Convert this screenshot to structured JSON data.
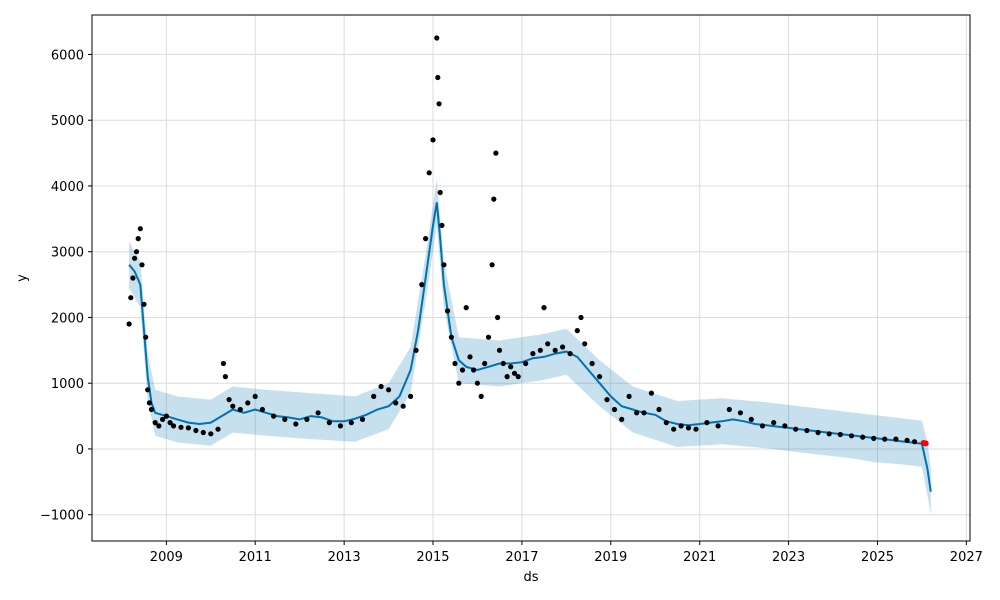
{
  "chart_data": {
    "type": "line",
    "title": "",
    "xlabel": "ds",
    "ylabel": "y",
    "xlim": [
      "2007-05-01",
      "2027-01-31"
    ],
    "ylim": [
      -1400,
      6600
    ],
    "grid": true,
    "x_ticks": [
      "2009",
      "2011",
      "2013",
      "2015",
      "2017",
      "2019",
      "2021",
      "2023",
      "2025",
      "2027"
    ],
    "y_ticks": [
      -1000,
      0,
      1000,
      2000,
      3000,
      4000,
      5000,
      6000
    ],
    "colors": {
      "observed": "#000000",
      "forecast_line": "#0072B2",
      "uncertainty_band": "#0072B2",
      "highlight": "#ff0000"
    },
    "series": [
      {
        "role": "observed",
        "style": "points",
        "points": [
          [
            "2008-03-01",
            1900
          ],
          [
            "2008-03-15",
            2300
          ],
          [
            "2008-04-01",
            2600
          ],
          [
            "2008-04-15",
            2900
          ],
          [
            "2008-05-01",
            3000
          ],
          [
            "2008-05-15",
            3200
          ],
          [
            "2008-06-01",
            3350
          ],
          [
            "2008-06-15",
            2800
          ],
          [
            "2008-07-01",
            2200
          ],
          [
            "2008-07-15",
            1700
          ],
          [
            "2008-08-01",
            900
          ],
          [
            "2008-08-15",
            700
          ],
          [
            "2008-09-01",
            600
          ],
          [
            "2008-10-01",
            400
          ],
          [
            "2008-11-01",
            350
          ],
          [
            "2008-12-01",
            450
          ],
          [
            "2009-01-01",
            500
          ],
          [
            "2009-02-01",
            400
          ],
          [
            "2009-03-01",
            350
          ],
          [
            "2009-05-01",
            330
          ],
          [
            "2009-07-01",
            320
          ],
          [
            "2009-09-01",
            280
          ],
          [
            "2009-11-01",
            250
          ],
          [
            "2010-01-01",
            230
          ],
          [
            "2010-03-01",
            300
          ],
          [
            "2010-04-15",
            1300
          ],
          [
            "2010-05-01",
            1100
          ],
          [
            "2010-06-01",
            750
          ],
          [
            "2010-07-01",
            650
          ],
          [
            "2010-09-01",
            600
          ],
          [
            "2010-11-01",
            700
          ],
          [
            "2011-01-01",
            800
          ],
          [
            "2011-03-01",
            600
          ],
          [
            "2011-06-01",
            500
          ],
          [
            "2011-09-01",
            450
          ],
          [
            "2011-12-01",
            380
          ],
          [
            "2012-03-01",
            450
          ],
          [
            "2012-06-01",
            550
          ],
          [
            "2012-09-01",
            400
          ],
          [
            "2012-12-01",
            350
          ],
          [
            "2013-03-01",
            400
          ],
          [
            "2013-06-01",
            450
          ],
          [
            "2013-09-01",
            800
          ],
          [
            "2013-11-01",
            950
          ],
          [
            "2014-01-01",
            900
          ],
          [
            "2014-03-01",
            700
          ],
          [
            "2014-05-01",
            650
          ],
          [
            "2014-07-01",
            800
          ],
          [
            "2014-08-15",
            1500
          ],
          [
            "2014-10-01",
            2500
          ],
          [
            "2014-11-01",
            3200
          ],
          [
            "2014-12-01",
            4200
          ],
          [
            "2015-01-01",
            4700
          ],
          [
            "2015-02-01",
            6250
          ],
          [
            "2015-02-10",
            5650
          ],
          [
            "2015-02-20",
            5250
          ],
          [
            "2015-03-01",
            3900
          ],
          [
            "2015-03-15",
            3400
          ],
          [
            "2015-04-01",
            2800
          ],
          [
            "2015-05-01",
            2100
          ],
          [
            "2015-06-01",
            1700
          ],
          [
            "2015-07-01",
            1300
          ],
          [
            "2015-08-01",
            1000
          ],
          [
            "2015-09-01",
            1200
          ],
          [
            "2015-10-01",
            2150
          ],
          [
            "2015-11-01",
            1400
          ],
          [
            "2015-12-01",
            1200
          ],
          [
            "2016-01-01",
            1000
          ],
          [
            "2016-02-01",
            800
          ],
          [
            "2016-03-01",
            1300
          ],
          [
            "2016-04-01",
            1700
          ],
          [
            "2016-05-01",
            2800
          ],
          [
            "2016-05-15",
            3800
          ],
          [
            "2016-06-01",
            4500
          ],
          [
            "2016-06-15",
            2000
          ],
          [
            "2016-07-01",
            1500
          ],
          [
            "2016-08-01",
            1300
          ],
          [
            "2016-09-01",
            1100
          ],
          [
            "2016-10-01",
            1250
          ],
          [
            "2016-11-01",
            1150
          ],
          [
            "2016-12-01",
            1100
          ],
          [
            "2017-02-01",
            1300
          ],
          [
            "2017-04-01",
            1450
          ],
          [
            "2017-06-01",
            1500
          ],
          [
            "2017-07-01",
            2150
          ],
          [
            "2017-08-01",
            1600
          ],
          [
            "2017-10-01",
            1500
          ],
          [
            "2017-12-01",
            1550
          ],
          [
            "2018-02-01",
            1450
          ],
          [
            "2018-04-01",
            1800
          ],
          [
            "2018-05-01",
            2000
          ],
          [
            "2018-06-01",
            1600
          ],
          [
            "2018-08-01",
            1300
          ],
          [
            "2018-10-01",
            1100
          ],
          [
            "2018-12-01",
            750
          ],
          [
            "2019-02-01",
            600
          ],
          [
            "2019-04-01",
            450
          ],
          [
            "2019-06-01",
            800
          ],
          [
            "2019-08-01",
            550
          ],
          [
            "2019-10-01",
            550
          ],
          [
            "2019-12-01",
            850
          ],
          [
            "2020-02-01",
            600
          ],
          [
            "2020-04-01",
            400
          ],
          [
            "2020-06-01",
            300
          ],
          [
            "2020-08-01",
            350
          ],
          [
            "2020-10-01",
            320
          ],
          [
            "2020-12-01",
            300
          ],
          [
            "2021-03-01",
            400
          ],
          [
            "2021-06-01",
            350
          ],
          [
            "2021-09-01",
            600
          ],
          [
            "2021-12-01",
            550
          ],
          [
            "2022-03-01",
            450
          ],
          [
            "2022-06-01",
            350
          ],
          [
            "2022-09-01",
            400
          ],
          [
            "2022-12-01",
            350
          ],
          [
            "2023-03-01",
            300
          ],
          [
            "2023-06-01",
            280
          ],
          [
            "2023-09-01",
            250
          ],
          [
            "2023-12-01",
            230
          ],
          [
            "2024-03-01",
            220
          ],
          [
            "2024-06-01",
            200
          ],
          [
            "2024-09-01",
            180
          ],
          [
            "2024-12-01",
            160
          ],
          [
            "2025-03-01",
            150
          ],
          [
            "2025-06-01",
            150
          ],
          [
            "2025-09-01",
            130
          ],
          [
            "2025-11-01",
            110
          ]
        ]
      },
      {
        "role": "forecast",
        "style": "line",
        "points": [
          [
            "2008-03-01",
            2800
          ],
          [
            "2008-04-15",
            2700
          ],
          [
            "2008-06-01",
            2500
          ],
          [
            "2008-07-01",
            1800
          ],
          [
            "2008-08-01",
            1100
          ],
          [
            "2008-09-01",
            700
          ],
          [
            "2008-10-01",
            550
          ],
          [
            "2009-01-01",
            500
          ],
          [
            "2009-04-01",
            450
          ],
          [
            "2009-07-01",
            400
          ],
          [
            "2009-10-01",
            380
          ],
          [
            "2010-01-01",
            400
          ],
          [
            "2010-04-01",
            500
          ],
          [
            "2010-07-01",
            600
          ],
          [
            "2010-10-01",
            550
          ],
          [
            "2011-01-01",
            600
          ],
          [
            "2011-04-01",
            550
          ],
          [
            "2011-07-01",
            500
          ],
          [
            "2011-10-01",
            480
          ],
          [
            "2012-01-01",
            450
          ],
          [
            "2012-04-01",
            500
          ],
          [
            "2012-07-01",
            480
          ],
          [
            "2012-10-01",
            420
          ],
          [
            "2013-01-01",
            420
          ],
          [
            "2013-04-01",
            460
          ],
          [
            "2013-07-01",
            520
          ],
          [
            "2013-10-01",
            600
          ],
          [
            "2014-01-01",
            650
          ],
          [
            "2014-04-01",
            800
          ],
          [
            "2014-07-01",
            1200
          ],
          [
            "2014-09-01",
            1800
          ],
          [
            "2014-11-01",
            2600
          ],
          [
            "2015-01-01",
            3400
          ],
          [
            "2015-02-01",
            3750
          ],
          [
            "2015-03-01",
            3200
          ],
          [
            "2015-04-01",
            2500
          ],
          [
            "2015-06-01",
            1700
          ],
          [
            "2015-08-01",
            1350
          ],
          [
            "2015-10-01",
            1250
          ],
          [
            "2016-01-01",
            1200
          ],
          [
            "2016-04-01",
            1250
          ],
          [
            "2016-07-01",
            1300
          ],
          [
            "2016-10-01",
            1300
          ],
          [
            "2017-01-01",
            1320
          ],
          [
            "2017-04-01",
            1380
          ],
          [
            "2017-07-01",
            1400
          ],
          [
            "2017-10-01",
            1450
          ],
          [
            "2018-01-01",
            1480
          ],
          [
            "2018-04-01",
            1400
          ],
          [
            "2018-07-01",
            1200
          ],
          [
            "2018-10-01",
            1000
          ],
          [
            "2019-01-01",
            800
          ],
          [
            "2019-04-01",
            650
          ],
          [
            "2019-07-01",
            600
          ],
          [
            "2019-10-01",
            550
          ],
          [
            "2020-01-01",
            520
          ],
          [
            "2020-04-01",
            420
          ],
          [
            "2020-07-01",
            380
          ],
          [
            "2020-10-01",
            360
          ],
          [
            "2021-01-01",
            380
          ],
          [
            "2021-04-01",
            400
          ],
          [
            "2021-07-01",
            420
          ],
          [
            "2021-10-01",
            450
          ],
          [
            "2022-01-01",
            420
          ],
          [
            "2022-04-01",
            380
          ],
          [
            "2022-07-01",
            360
          ],
          [
            "2022-10-01",
            340
          ],
          [
            "2023-01-01",
            320
          ],
          [
            "2023-04-01",
            300
          ],
          [
            "2023-07-01",
            280
          ],
          [
            "2023-10-01",
            260
          ],
          [
            "2024-01-01",
            240
          ],
          [
            "2024-04-01",
            220
          ],
          [
            "2024-07-01",
            200
          ],
          [
            "2024-10-01",
            180
          ],
          [
            "2025-01-01",
            160
          ],
          [
            "2025-04-01",
            140
          ],
          [
            "2025-07-01",
            120
          ],
          [
            "2025-10-01",
            100
          ],
          [
            "2026-01-01",
            80
          ],
          [
            "2026-02-15",
            -300
          ],
          [
            "2026-03-15",
            -650
          ]
        ]
      },
      {
        "role": "uncertainty",
        "style": "band",
        "upper": [
          [
            "2008-03-01",
            3150
          ],
          [
            "2008-06-01",
            2850
          ],
          [
            "2008-08-01",
            1450
          ],
          [
            "2008-10-01",
            900
          ],
          [
            "2009-04-01",
            800
          ],
          [
            "2010-01-01",
            750
          ],
          [
            "2010-07-01",
            950
          ],
          [
            "2011-04-01",
            900
          ],
          [
            "2012-04-01",
            850
          ],
          [
            "2013-04-01",
            800
          ],
          [
            "2014-01-01",
            1000
          ],
          [
            "2014-07-01",
            1550
          ],
          [
            "2014-11-01",
            2950
          ],
          [
            "2015-02-01",
            4100
          ],
          [
            "2015-04-01",
            2850
          ],
          [
            "2015-08-01",
            1700
          ],
          [
            "2016-07-01",
            1650
          ],
          [
            "2017-07-01",
            1750
          ],
          [
            "2018-01-01",
            1830
          ],
          [
            "2018-10-01",
            1350
          ],
          [
            "2019-07-01",
            950
          ],
          [
            "2020-07-01",
            730
          ],
          [
            "2021-07-01",
            770
          ],
          [
            "2022-07-01",
            710
          ],
          [
            "2023-07-01",
            630
          ],
          [
            "2024-07-01",
            550
          ],
          [
            "2025-07-01",
            470
          ],
          [
            "2026-01-01",
            430
          ],
          [
            "2026-02-15",
            100
          ],
          [
            "2026-03-15",
            -300
          ]
        ],
        "lower": [
          [
            "2008-03-01",
            2450
          ],
          [
            "2008-06-01",
            2150
          ],
          [
            "2008-08-01",
            750
          ],
          [
            "2008-10-01",
            200
          ],
          [
            "2009-04-01",
            100
          ],
          [
            "2010-01-01",
            50
          ],
          [
            "2010-07-01",
            250
          ],
          [
            "2011-04-01",
            200
          ],
          [
            "2012-04-01",
            150
          ],
          [
            "2013-04-01",
            110
          ],
          [
            "2014-01-01",
            300
          ],
          [
            "2014-07-01",
            850
          ],
          [
            "2014-11-01",
            2250
          ],
          [
            "2015-02-01",
            3400
          ],
          [
            "2015-04-01",
            2150
          ],
          [
            "2015-08-01",
            1000
          ],
          [
            "2016-07-01",
            950
          ],
          [
            "2017-07-01",
            1050
          ],
          [
            "2018-01-01",
            1130
          ],
          [
            "2018-10-01",
            650
          ],
          [
            "2019-07-01",
            250
          ],
          [
            "2020-07-01",
            30
          ],
          [
            "2021-07-01",
            70
          ],
          [
            "2022-07-01",
            10
          ],
          [
            "2023-07-01",
            -70
          ],
          [
            "2024-07-01",
            -150
          ],
          [
            "2024-12-01",
            -200
          ],
          [
            "2025-07-01",
            -230
          ],
          [
            "2026-01-01",
            -270
          ],
          [
            "2026-02-15",
            -700
          ],
          [
            "2026-03-15",
            -1000
          ]
        ]
      },
      {
        "role": "highlight",
        "style": "points",
        "points": [
          [
            "2026-01-15",
            90
          ],
          [
            "2026-02-01",
            85
          ]
        ]
      }
    ]
  }
}
